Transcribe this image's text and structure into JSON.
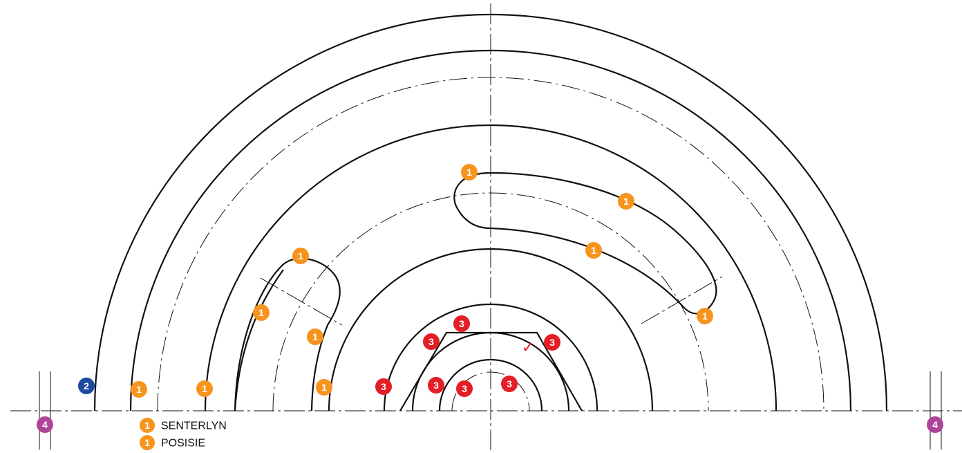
{
  "colors": {
    "orange": "#F7941D",
    "red": "#E41E26",
    "blue": "#1B4AA0",
    "purple": "#B0449A",
    "line": "#111111"
  },
  "badges": {
    "one": "1",
    "two": "2",
    "three": "3",
    "four": "4"
  },
  "check_mark": "✓",
  "legend": {
    "item1": {
      "number": "1",
      "label": "SENTERLYN"
    },
    "item2": {
      "number": "1",
      "label": "POSISIE"
    }
  }
}
